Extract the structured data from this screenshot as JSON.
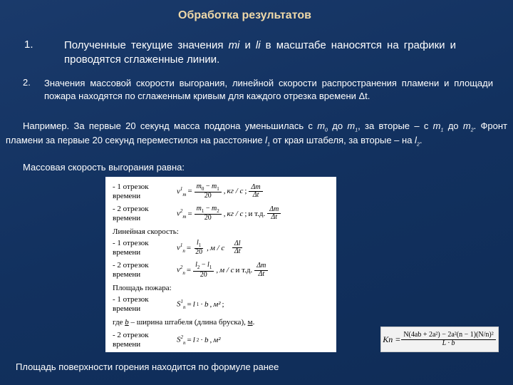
{
  "title": "Обработка результатов",
  "item1_num": "1.",
  "item1_text_a": "Полученные текущие значения ",
  "item1_mi": "mi",
  "item1_and": " и ",
  "item1_li": "li",
  "item1_text_b": " в масштабе наносятся на графики и проводятся сглаженные линии.",
  "item2_num": "2.",
  "item2_text": "Значения массовой скорости выгорания, линейной скорости распространения пламени и площади пожара находятся по сглаженным кривым для каждого отрезка времени Δt.",
  "example_a": "Например. За первые 20 секунд масса поддона уменьшилась с ",
  "ex_m0": "m",
  "ex_m0sub": "0",
  "example_b": " до ",
  "ex_m1": "m",
  "ex_m1sub": "1",
  "example_c": ", за вторые – с ",
  "ex_m1b": "m",
  "ex_m1bsub": "1",
  "example_d": " до ",
  "ex_m2": "m",
  "ex_m2sub": "2",
  "example_e": ". Фронт пламени за первые 20 секунд переместился на расстояние ",
  "ex_l1": "l",
  "ex_l1sub": "1",
  "example_f": " от края штабеля, за вторые – на ",
  "ex_l2": "l",
  "ex_l2sub": "2",
  "example_g": ".",
  "mass_line": "Массовая скорость выгорания равна:",
  "f_seg1": "- 1 отрезок времени",
  "f_seg2": "- 2 отрезок времени",
  "f_seg2b": "- 2 отрезок времени",
  "f_linear_hdr": "Линейная скорость:",
  "f_area_hdr": "Площадь пожара:",
  "f_where": "где ",
  "f_b": "b",
  "f_where2": " – ширина штабеля (длина бруска), ",
  "f_m": "м",
  "f_itd": "и т.д.",
  "f_semi": " ; ",
  "f_kg": "кг / с",
  "f_ms": "м / с",
  "f_m2": "м²",
  "vm": "v",
  "vl": "v",
  "S": "S",
  "eq": " = ",
  "comma": ",",
  "m0": "m",
  "m1": "m",
  "m2": "m",
  "l1": "l",
  "l2": "l",
  "twenty": "20",
  "dm": "Δm",
  "dt": "Δt",
  "dl": "Δl",
  "sub0": "0",
  "sub1": "1",
  "sub2": "2",
  "subm": "m",
  "subn": "n",
  "supl1": "1",
  "supl2": "2",
  "kn_lhs": "Kn = ",
  "kn_num": "N(4ab + 2a²) − 2a²(n − 1)(N/n)²",
  "kn_den": "L · b",
  "footer": "Площадь поверхности горения находится по формуле ранее"
}
